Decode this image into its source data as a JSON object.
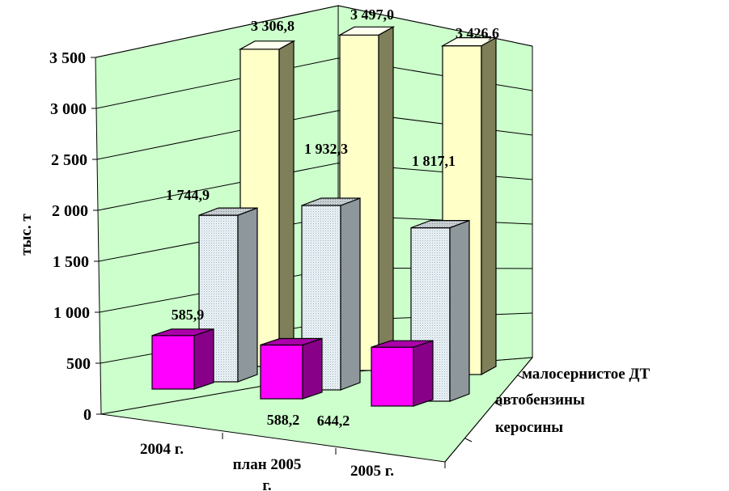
{
  "chart_data": {
    "type": "bar",
    "title": "",
    "ylabel": "тыс. т",
    "ylim": [
      0,
      3500
    ],
    "yticks": [
      {
        "value": 0,
        "label": "0"
      },
      {
        "value": 500,
        "label": "500"
      },
      {
        "value": 1000,
        "label": "1 000"
      },
      {
        "value": 1500,
        "label": "1 500"
      },
      {
        "value": 2000,
        "label": "2 000"
      },
      {
        "value": 2500,
        "label": "2 500"
      },
      {
        "value": 3000,
        "label": "3 000"
      },
      {
        "value": 3500,
        "label": "3 500"
      }
    ],
    "categories": [
      "2004 г.",
      "план 2005 г.",
      "2005 г."
    ],
    "series": [
      {
        "name": "керосины",
        "color": "#ff00ff",
        "values": [
          585.9,
          588.2,
          644.2
        ],
        "labels": [
          "585,9",
          "588,2",
          "644,2"
        ]
      },
      {
        "name": "автобензины",
        "color": "#e8f2f8",
        "values": [
          1744.9,
          1932.3,
          1817.1
        ],
        "labels": [
          "1 744,9",
          "1 932,3",
          "1 817,1"
        ]
      },
      {
        "name": "малосернистое ДТ",
        "color": "#ffffc8",
        "values": [
          3306.8,
          3497.0,
          3426.6
        ],
        "labels": [
          "3 306,8",
          "3 497,0",
          "3 426,6"
        ]
      }
    ],
    "legend": "depth-axis",
    "grid": true,
    "wall_color": "#ccffcc"
  }
}
